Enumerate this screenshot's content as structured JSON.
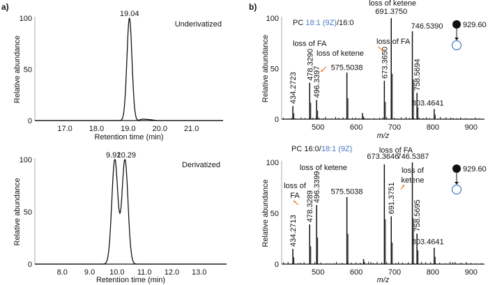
{
  "colors": {
    "black": "#111111",
    "orange": "#f07f2a",
    "blue": "#4a78c2",
    "red": "#d0202c",
    "axis_gray": "#aaaaaa"
  },
  "panels": {
    "a": "a)",
    "b": "b)"
  },
  "chart_data": [
    {
      "id": "a-top",
      "type": "line",
      "title": "Underivatized",
      "xlabel": "Retention time (min)",
      "ylabel": "Relative abundance",
      "xlim": [
        16.05,
        22.0
      ],
      "ylim": [
        0,
        100
      ],
      "xticks": [
        "17.0",
        "18.0",
        "19.0",
        "20.0",
        "21.0"
      ],
      "xtick_values": [
        17.0,
        18.0,
        19.0,
        20.0,
        21.0
      ],
      "yticks": [
        "0",
        "50",
        "100"
      ],
      "ytick_values": [
        0,
        50,
        100
      ],
      "peaks": [
        {
          "x": 19.04,
          "label": "19.04",
          "height": 100,
          "sigma": 0.08
        }
      ],
      "tail": {
        "start": 19.3,
        "end": 19.9,
        "level": 1.5
      },
      "grid": false
    },
    {
      "id": "a-bottom",
      "type": "line",
      "title": "Derivatized",
      "xlabel": "Retention time (min)",
      "ylabel": "Relative abundance",
      "xlim": [
        7.0,
        14.0
      ],
      "ylim": [
        0,
        100
      ],
      "xticks": [
        "8.0",
        "9.0",
        "10.0",
        "11.0",
        "12.0",
        "13.0"
      ],
      "xtick_values": [
        8.0,
        9.0,
        10.0,
        11.0,
        12.0,
        13.0
      ],
      "yticks": [
        "0",
        "50",
        "100"
      ],
      "ytick_values": [
        0,
        50,
        100
      ],
      "peaks": [
        {
          "x": 9.92,
          "label": "9.92",
          "height": 100,
          "sigma": 0.11
        },
        {
          "x": 10.29,
          "label": "10.29",
          "height": 100,
          "sigma": 0.11
        }
      ],
      "valley_value": 45,
      "grid": false
    },
    {
      "id": "b-top",
      "type": "bar",
      "title_parts": [
        {
          "text": "PC ",
          "color": "black"
        },
        {
          "text": "18:1 (9Z)",
          "color": "blue"
        },
        {
          "text": "/16:0",
          "color": "black"
        }
      ],
      "precursor": "929.60",
      "xlabel": "m/z",
      "ylabel": "Relative abundance",
      "xlim": [
        405,
        935
      ],
      "ylim": [
        0,
        100
      ],
      "xticks": [
        "500",
        "600",
        "700",
        "800",
        "900"
      ],
      "xtick_values": [
        500,
        600,
        700,
        800,
        900
      ],
      "yticks": [
        "0",
        "50",
        "100"
      ],
      "ytick_values": [
        0,
        50,
        100
      ],
      "peaks": [
        {
          "mz": 434.2723,
          "intensity": 13,
          "label": "434.2723",
          "color": "black",
          "rotated": true
        },
        {
          "mz": 478.329,
          "intensity": 36,
          "label": "478.3290",
          "color": "blue",
          "rotated": true
        },
        {
          "mz": 496.3397,
          "intensity": 19,
          "label": "496.3397",
          "color": "blue",
          "rotated": true
        },
        {
          "mz": 575.5038,
          "intensity": 46,
          "label": "575.5038",
          "color": "black",
          "rotated": false
        },
        {
          "mz": 616.0,
          "intensity": 6,
          "label": "",
          "color": "black",
          "rotated": false
        },
        {
          "mz": 673.365,
          "intensity": 38,
          "label": "673.3650",
          "color": "red",
          "rotated": true
        },
        {
          "mz": 691.375,
          "intensity": 100,
          "label": "691.3750",
          "color": "red",
          "rotated": false
        },
        {
          "mz": 746.539,
          "intensity": 87,
          "label": "746.5390",
          "color": "black",
          "rotated": false
        },
        {
          "mz": 758.5694,
          "intensity": 26,
          "label": "758.5694",
          "color": "black",
          "rotated": true
        },
        {
          "mz": 803.4641,
          "intensity": 10,
          "label": "803.4641",
          "color": "red",
          "rotated": false
        }
      ],
      "annotations": [
        {
          "text": "loss of FA",
          "color": "orange",
          "target": "478.3290"
        },
        {
          "text": "loss of ketene",
          "color": "orange",
          "target": "496.3397"
        },
        {
          "text": "loss of FA",
          "color": "orange",
          "target": "673.3650"
        },
        {
          "text": "loss of ketene",
          "color": "orange",
          "target": "691.3750"
        }
      ]
    },
    {
      "id": "b-bottom",
      "type": "bar",
      "title_parts": [
        {
          "text": "PC 16:0/",
          "color": "black"
        },
        {
          "text": "18:1 (9Z)",
          "color": "blue"
        }
      ],
      "precursor": "929.60",
      "xlabel": "m/z",
      "ylabel": "Relative abundance",
      "xlim": [
        405,
        935
      ],
      "ylim": [
        0,
        100
      ],
      "xticks": [
        "500",
        "600",
        "700",
        "800",
        "900"
      ],
      "xtick_values": [
        500,
        600,
        700,
        800,
        900
      ],
      "yticks": [
        "0",
        "50",
        "100"
      ],
      "ytick_values": [
        0,
        50,
        100
      ],
      "peaks": [
        {
          "mz": 434.2713,
          "intensity": 15,
          "label": "434.2713",
          "color": "black",
          "rotated": true
        },
        {
          "mz": 478.3289,
          "intensity": 39,
          "label": "478.3289",
          "color": "blue",
          "rotated": true
        },
        {
          "mz": 496.3399,
          "intensity": 58,
          "label": "496.3399",
          "color": "blue",
          "rotated": true
        },
        {
          "mz": 575.5038,
          "intensity": 66,
          "label": "575.5038",
          "color": "black",
          "rotated": false
        },
        {
          "mz": 619.0,
          "intensity": 5,
          "label": "",
          "color": "black",
          "rotated": false
        },
        {
          "mz": 673.3646,
          "intensity": 98,
          "label": "673.3646",
          "color": "red",
          "rotated": false
        },
        {
          "mz": 691.3751,
          "intensity": 47,
          "label": "691.3751",
          "color": "red",
          "rotated": true
        },
        {
          "mz": 746.5387,
          "intensity": 100,
          "label": "746.5387",
          "color": "black",
          "rotated": false
        },
        {
          "mz": 758.5695,
          "intensity": 30,
          "label": "758.5695",
          "color": "black",
          "rotated": true
        },
        {
          "mz": 803.4641,
          "intensity": 16,
          "label": "803.4641",
          "color": "red",
          "rotated": false
        }
      ],
      "annotations": [
        {
          "text": "loss of FA",
          "color": "orange",
          "target": "478.3289"
        },
        {
          "text": "loss of ketene",
          "color": "orange",
          "target": "496.3399"
        },
        {
          "text": "loss of FA",
          "color": "orange",
          "target": "673.3646"
        },
        {
          "text": "loss of ketene",
          "color": "orange",
          "target": "691.3751"
        }
      ]
    }
  ]
}
